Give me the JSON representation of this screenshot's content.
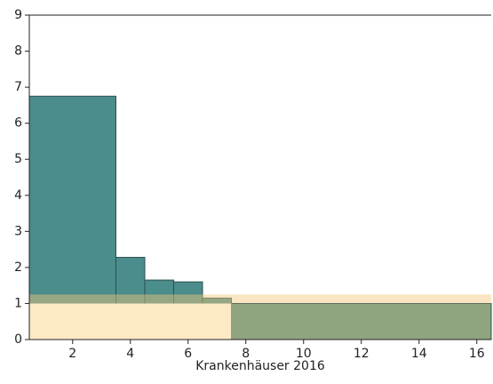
{
  "chart_data": {
    "type": "histogram",
    "x_label": "Krankenhäuser 2016",
    "bins": [
      0.5,
      3.5,
      4.5,
      5.5,
      6.5,
      7.5,
      16.5
    ],
    "values": [
      6.75,
      2.28,
      1.65,
      1.6,
      1.15,
      1.0
    ],
    "colors": [
      "#4b8c8c",
      "#4b8c8c",
      "#4b8c8c",
      "#4b8c8c",
      "#4b8c8c",
      "#8fa57f"
    ],
    "lower_region": {
      "xlim": [
        0.5,
        7.5
      ],
      "ylim": [
        0,
        1
      ],
      "color": "#fde9c4"
    },
    "band": {
      "ylim": [
        1,
        1.25
      ],
      "color": "#f5c878"
    },
    "xlim": [
      0.5,
      16.5
    ],
    "ylim": [
      0,
      9
    ],
    "xticks": [
      2,
      4,
      6,
      8,
      10,
      12,
      14,
      16
    ],
    "yticks": [
      0,
      1,
      2,
      3,
      4,
      5,
      6,
      7,
      8,
      9
    ]
  }
}
